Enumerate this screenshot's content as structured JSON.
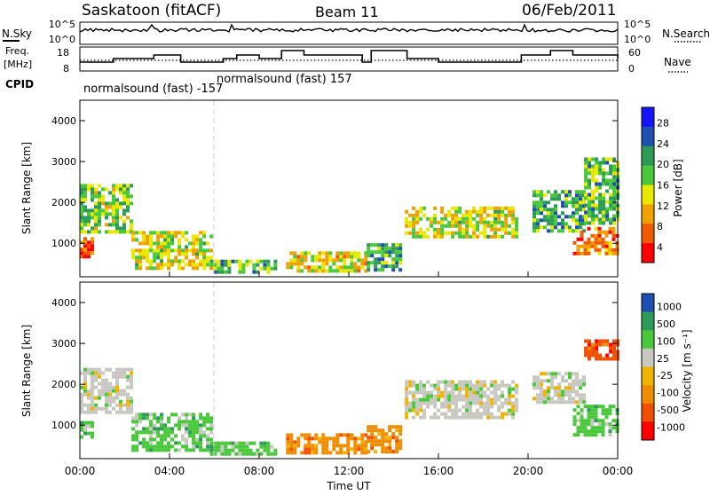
{
  "header": {
    "title": "Saskatoon (fitACF)",
    "beam": "Beam 11",
    "date": "06/Feb/2011"
  },
  "top_panels": {
    "nsky_label": "N.Sky",
    "nsky_ticks": [
      "10^5",
      "10^0"
    ],
    "nsearch_label": "N.Search",
    "nsearch_ticks": [
      "10^5",
      "10^0"
    ],
    "freq_label_1": "Freq.",
    "freq_label_2": "[MHz]",
    "freq_ticks": [
      "18",
      "8"
    ],
    "nave_label": "Nave",
    "nave_ticks": [
      "60",
      "0"
    ],
    "cpid_label": "CPID",
    "cpid_entries": [
      {
        "text": "normalsound (fast) -157",
        "start_hour": 0
      },
      {
        "text": "normalsound (fast) 157",
        "start_hour": 6
      }
    ]
  },
  "chart_data": [
    {
      "type": "heatmap",
      "panel": "power",
      "xlabel": "",
      "ylabel": "Slant Range [km]",
      "ylim": [
        180,
        4500
      ],
      "yticks": [
        "1000",
        "2000",
        "3000",
        "4000"
      ],
      "colorbar_label": "Power [dB]",
      "colorbar_ticks": [
        "28",
        "24",
        "20",
        "16",
        "12",
        "8",
        "4"
      ],
      "colorbar_range": [
        0,
        32
      ],
      "colors": [
        "#1414ff",
        "#1e50b4",
        "#2e9a57",
        "#48c83a",
        "#e8e800",
        "#f0a000",
        "#f05a00",
        "#ff0000"
      ],
      "regions": [
        {
          "x": [
            0.0,
            0.5
          ],
          "y": [
            700,
            1150
          ],
          "level": 0.85
        },
        {
          "x": [
            0.0,
            2.3
          ],
          "y": [
            1250,
            2450
          ],
          "level": 0.45
        },
        {
          "x": [
            2.3,
            5.8
          ],
          "y": [
            350,
            1300
          ],
          "level": 0.55
        },
        {
          "x": [
            5.8,
            8.8
          ],
          "y": [
            300,
            600
          ],
          "level": 0.4
        },
        {
          "x": [
            9.2,
            12.8
          ],
          "y": [
            350,
            800
          ],
          "level": 0.6
        },
        {
          "x": [
            12.8,
            14.3
          ],
          "y": [
            350,
            1000
          ],
          "level": 0.35
        },
        {
          "x": [
            14.5,
            19.5
          ],
          "y": [
            1150,
            1900
          ],
          "level": 0.55
        },
        {
          "x": [
            20.2,
            22.5
          ],
          "y": [
            1300,
            2300
          ],
          "level": 0.35
        },
        {
          "x": [
            22.0,
            24.0
          ],
          "y": [
            750,
            1400
          ],
          "level": 0.8
        },
        {
          "x": [
            22.5,
            24.0
          ],
          "y": [
            1500,
            3100
          ],
          "level": 0.4
        }
      ]
    },
    {
      "type": "heatmap",
      "panel": "velocity",
      "xlabel": "Time UT",
      "ylabel": "Slant Range [km]",
      "ylim": [
        180,
        4500
      ],
      "yticks": [
        "1000",
        "2000",
        "3000",
        "4000"
      ],
      "x_ticks": [
        "00:00",
        "04:00",
        "08:00",
        "12:00",
        "16:00",
        "20:00",
        "00:00"
      ],
      "x_range_hours": [
        0,
        24
      ],
      "colorbar_label": "Velocity [m s⁻¹]",
      "colorbar_ticks": [
        "1000",
        "500",
        "100",
        "25",
        "-25",
        "-100",
        "-500",
        "-1000"
      ],
      "colors": [
        "#1e50b4",
        "#2e9a57",
        "#48c83a",
        "#c8c8c0",
        "#f0b400",
        "#f08c00",
        "#f05000",
        "#ff0000"
      ],
      "regions": [
        {
          "x": [
            0.0,
            0.6
          ],
          "y": [
            700,
            1100
          ],
          "v": 100
        },
        {
          "x": [
            0.0,
            2.3
          ],
          "y": [
            1300,
            2400
          ],
          "v": 0
        },
        {
          "x": [
            2.3,
            5.8
          ],
          "y": [
            350,
            1300
          ],
          "v": 60
        },
        {
          "x": [
            5.8,
            8.8
          ],
          "y": [
            300,
            600
          ],
          "v": 80
        },
        {
          "x": [
            9.2,
            12.8
          ],
          "y": [
            350,
            800
          ],
          "v": -150
        },
        {
          "x": [
            12.8,
            14.3
          ],
          "y": [
            350,
            1000
          ],
          "v": -200
        },
        {
          "x": [
            14.5,
            19.5
          ],
          "y": [
            1150,
            2100
          ],
          "v": 0
        },
        {
          "x": [
            20.2,
            22.5
          ],
          "y": [
            1600,
            2300
          ],
          "v": 0
        },
        {
          "x": [
            22.0,
            24.0
          ],
          "y": [
            800,
            1500
          ],
          "v": 150
        },
        {
          "x": [
            22.5,
            24.0
          ],
          "y": [
            2600,
            3100
          ],
          "v": -300
        }
      ]
    }
  ]
}
